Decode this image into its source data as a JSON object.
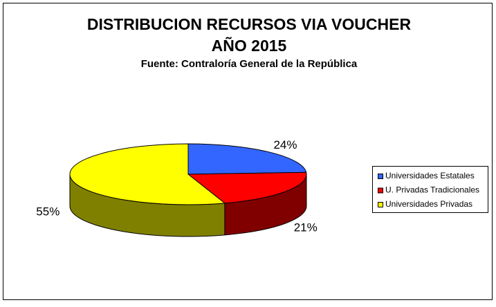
{
  "chart_data": {
    "type": "pie3d",
    "title": [
      "DISTRIBUCION RECURSOS VIA VOUCHER",
      "AÑO 2015"
    ],
    "subtitle": "Fuente: Contraloría General de la República",
    "categories": [
      "Universidades Estatales",
      "U. Privadas Tradicionales",
      "Universidades Privadas"
    ],
    "values": [
      24,
      21,
      55
    ],
    "value_labels": [
      "24%",
      "21%",
      "55%"
    ],
    "colors": [
      "#3366ff",
      "#ff0000",
      "#ffff00"
    ],
    "side_colors": [
      "#1a33a0",
      "#800000",
      "#808000"
    ],
    "legend": "right"
  }
}
